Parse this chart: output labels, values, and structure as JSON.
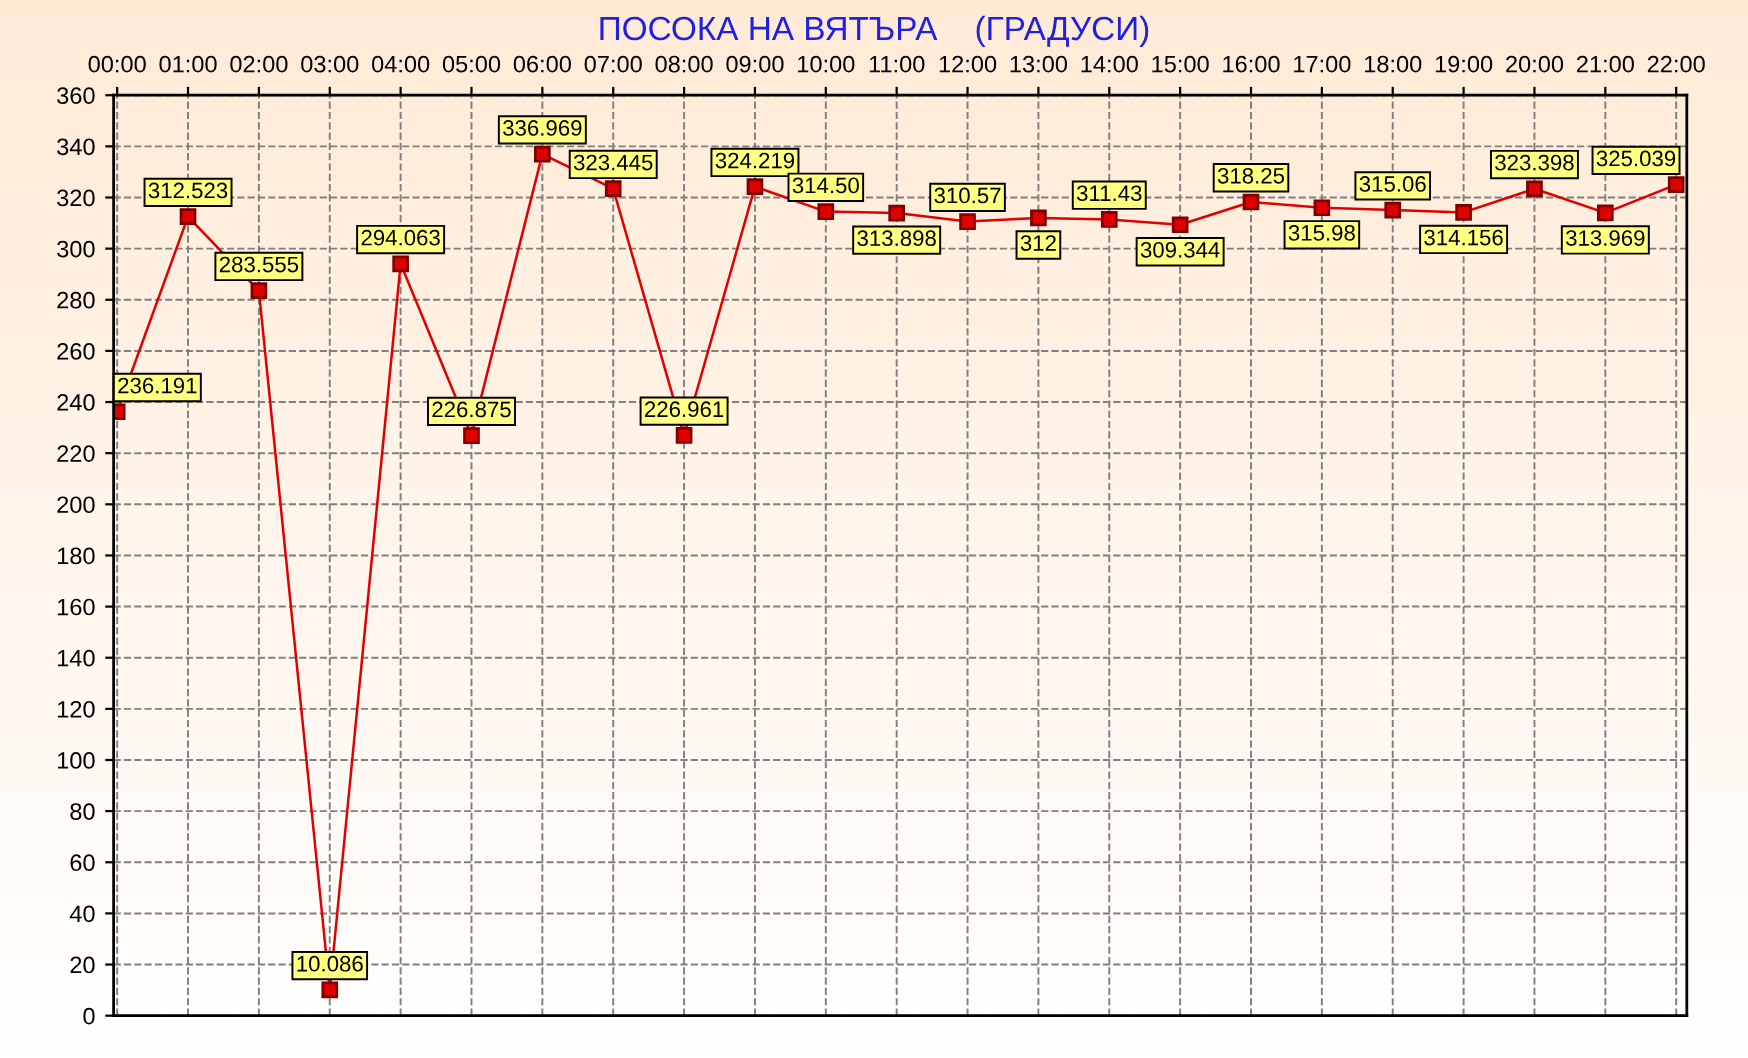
{
  "chart_data": {
    "type": "line",
    "title": "ПОСОКА НА ВЯТЪРА    (ГРАДУСИ)",
    "categories": [
      "00:00",
      "01:00",
      "02:00",
      "03:00",
      "04:00",
      "05:00",
      "06:00",
      "07:00",
      "08:00",
      "09:00",
      "10:00",
      "11:00",
      "12:00",
      "13:00",
      "14:00",
      "15:00",
      "16:00",
      "17:00",
      "18:00",
      "19:00",
      "20:00",
      "21:00",
      "22:00"
    ],
    "series": [
      {
        "color": "#e00000",
        "values": [
          236.191,
          312.523,
          283.555,
          10.086,
          294.063,
          226.875,
          336.969,
          323.445,
          226.961,
          324.219,
          314.5,
          313.898,
          310.57,
          312,
          311.43,
          309.344,
          318.25,
          315.98,
          315.06,
          314.156,
          323.398,
          313.969,
          325.039
        ],
        "value_labels": [
          "236.191",
          "312.523",
          "283.555",
          "10.086",
          "294.063",
          "226.875",
          "336.969",
          "323.445",
          "226.961",
          "324.219",
          "314.50",
          "313.898",
          "310.57",
          "312",
          "311.43",
          "309.344",
          "318.25",
          "315.98",
          "315.06",
          "314.156",
          "323.398",
          "313.969",
          "325.039"
        ]
      }
    ],
    "ylim": [
      0,
      360
    ],
    "yticks": [
      0,
      20,
      40,
      60,
      80,
      100,
      120,
      140,
      160,
      180,
      200,
      220,
      240,
      260,
      280,
      300,
      320,
      340,
      360
    ],
    "grid": true,
    "marker": "square",
    "line_style": "solid",
    "legend": false
  }
}
